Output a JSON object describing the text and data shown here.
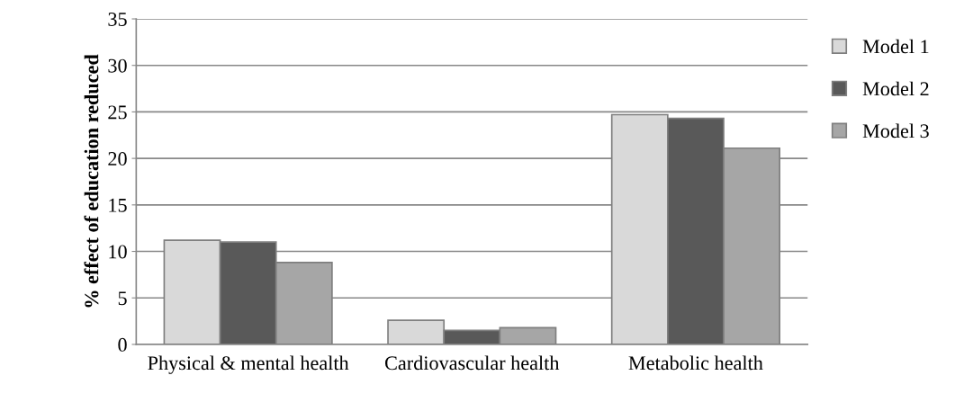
{
  "chart_data": {
    "type": "bar",
    "ylabel": "% effect of education reduced",
    "categories": [
      "Physical & mental health",
      "Cardiovascular health",
      "Metabolic health"
    ],
    "series": [
      {
        "name": "Model 1",
        "color": "#d9d9d9",
        "values": [
          11.2,
          2.6,
          24.7
        ]
      },
      {
        "name": "Model 2",
        "color": "#595959",
        "values": [
          11.0,
          1.5,
          24.3
        ]
      },
      {
        "name": "Model 3",
        "color": "#a6a6a6",
        "values": [
          8.8,
          1.8,
          21.1
        ]
      }
    ],
    "ylim": [
      0,
      35
    ],
    "yticks": [
      0,
      5,
      10,
      15,
      20,
      25,
      30,
      35
    ],
    "grid": "y",
    "legend": "right"
  }
}
